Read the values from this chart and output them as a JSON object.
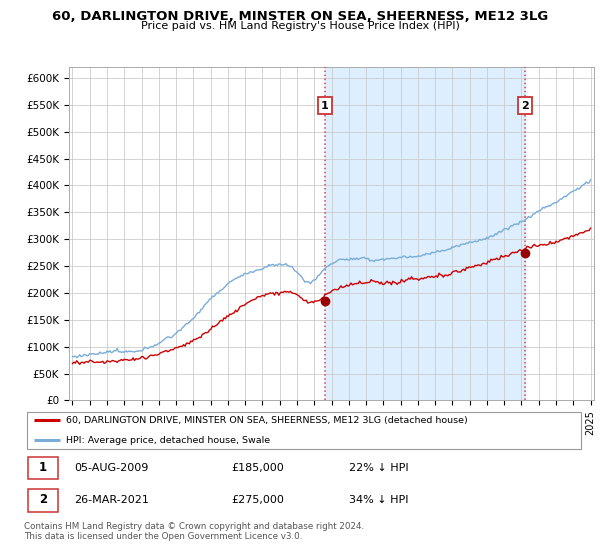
{
  "title": "60, DARLINGTON DRIVE, MINSTER ON SEA, SHEERNESS, ME12 3LG",
  "subtitle": "Price paid vs. HM Land Registry's House Price Index (HPI)",
  "ylim": [
    0,
    620000
  ],
  "yticks": [
    0,
    50000,
    100000,
    150000,
    200000,
    250000,
    300000,
    350000,
    400000,
    450000,
    500000,
    550000,
    600000
  ],
  "ytick_labels": [
    "£0",
    "£50K",
    "£100K",
    "£150K",
    "£200K",
    "£250K",
    "£300K",
    "£350K",
    "£400K",
    "£450K",
    "£500K",
    "£550K",
    "£600K"
  ],
  "sale1_date": 2009.6,
  "sale1_price": 185000,
  "sale2_date": 2021.23,
  "sale2_price": 275000,
  "hpi_color": "#7aadd8",
  "hpi_fill_color": "#ddeeff",
  "price_color": "#cc0000",
  "marker_color": "#990000",
  "vline_color": "#dd4444",
  "legend_house_label": "60, DARLINGTON DRIVE, MINSTER ON SEA, SHEERNESS, ME12 3LG (detached house)",
  "legend_hpi_label": "HPI: Average price, detached house, Swale",
  "footnote": "Contains HM Land Registry data © Crown copyright and database right 2024.\nThis data is licensed under the Open Government Licence v3.0.",
  "xstart": 1995,
  "xend": 2025
}
